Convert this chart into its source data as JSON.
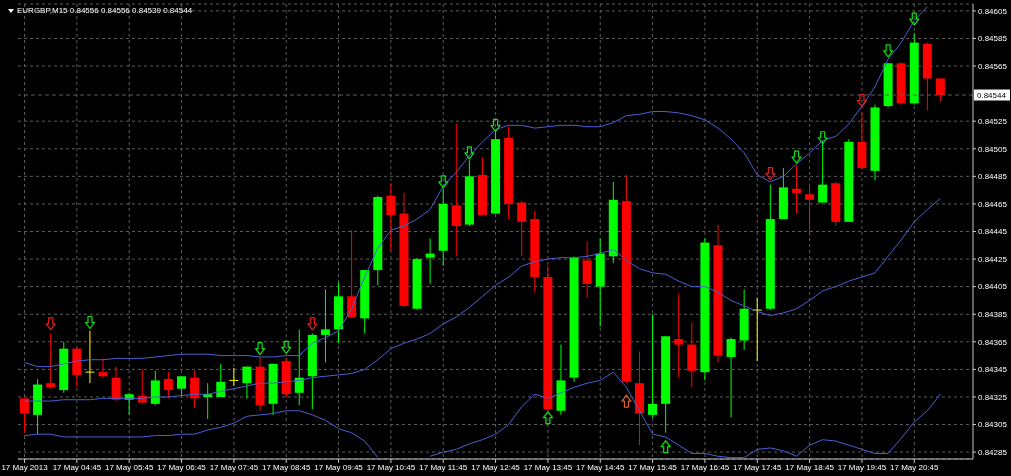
{
  "chart_data": {
    "type": "candlestick",
    "title": "EURGBP,M15 0.84556 0.84556 0.84539 0.84544",
    "categories": [
      "17 May 2013",
      null,
      null,
      null,
      "17 May 04:45",
      null,
      null,
      null,
      "17 May 05:45",
      null,
      null,
      null,
      "17 May 06:45",
      null,
      null,
      null,
      "17 May 07:45",
      null,
      null,
      null,
      "17 May 08:45",
      null,
      null,
      null,
      "17 May 09:45",
      null,
      null,
      null,
      "17 May 10:45",
      null,
      null,
      null,
      "17 May 11:45",
      null,
      null,
      null,
      "17 May 12:45",
      null,
      null,
      null,
      "17 May 13:45",
      null,
      null,
      null,
      "17 May 14:45",
      null,
      null,
      null,
      "17 May 15:45",
      null,
      null,
      null,
      "17 May 16:45",
      null,
      null,
      null,
      "17 May 17:45",
      null,
      null,
      null,
      "17 May 18:45",
      null,
      null,
      null,
      "17 May 19:45",
      null,
      null,
      null,
      "17 May 20:45",
      null,
      null
    ],
    "ohlc": [
      [
        0.84324,
        0.84324,
        0.84299,
        0.84313
      ],
      [
        0.84312,
        0.84338,
        0.84298,
        0.84334
      ],
      [
        0.84335,
        0.84371,
        0.84331,
        0.84332
      ],
      [
        0.8433,
        0.84365,
        0.84328,
        0.8436
      ],
      [
        0.8436,
        0.84361,
        0.84332,
        0.84341
      ],
      [
        0.84343,
        0.84373,
        0.84335,
        0.84343
      ],
      [
        0.84343,
        0.84353,
        0.84339,
        0.8434
      ],
      [
        0.84339,
        0.84347,
        0.84322,
        0.84323
      ],
      [
        0.84323,
        0.84328,
        0.84312,
        0.84327
      ],
      [
        0.84326,
        0.84345,
        0.8432,
        0.84321
      ],
      [
        0.8432,
        0.84344,
        0.84319,
        0.84337
      ],
      [
        0.84338,
        0.84343,
        0.84324,
        0.8433
      ],
      [
        0.84331,
        0.8434,
        0.84326,
        0.8434
      ],
      [
        0.84339,
        0.84344,
        0.84317,
        0.84324
      ],
      [
        0.84325,
        0.84335,
        0.84309,
        0.84327
      ],
      [
        0.84325,
        0.84349,
        0.84325,
        0.84336
      ],
      [
        0.84337,
        0.84346,
        0.84333,
        0.84337
      ],
      [
        0.84335,
        0.84347,
        0.84324,
        0.84347
      ],
      [
        0.84347,
        0.84354,
        0.84315,
        0.84319
      ],
      [
        0.8432,
        0.84349,
        0.84312,
        0.84349
      ],
      [
        0.84351,
        0.84353,
        0.84325,
        0.84327
      ],
      [
        0.84328,
        0.84374,
        0.84319,
        0.84339
      ],
      [
        0.8434,
        0.84371,
        0.84316,
        0.8437
      ],
      [
        0.8437,
        0.84403,
        0.8435,
        0.84374
      ],
      [
        0.84374,
        0.84408,
        0.84364,
        0.84398
      ],
      [
        0.84398,
        0.84446,
        0.84382,
        0.84383
      ],
      [
        0.84382,
        0.84417,
        0.84371,
        0.84417
      ],
      [
        0.84417,
        0.84471,
        0.84406,
        0.8447
      ],
      [
        0.84471,
        0.8448,
        0.84431,
        0.84457
      ],
      [
        0.84458,
        0.84473,
        0.8439,
        0.84391
      ],
      [
        0.84389,
        0.84426,
        0.84388,
        0.84425
      ],
      [
        0.84426,
        0.8444,
        0.84407,
        0.84429
      ],
      [
        0.84431,
        0.84476,
        0.8442,
        0.84465
      ],
      [
        0.84464,
        0.84523,
        0.84427,
        0.84449
      ],
      [
        0.8445,
        0.84497,
        0.84449,
        0.84485
      ],
      [
        0.84486,
        0.84499,
        0.84457,
        0.84457
      ],
      [
        0.84458,
        0.84517,
        0.84458,
        0.84512
      ],
      [
        0.84513,
        0.84521,
        0.84454,
        0.84465
      ],
      [
        0.84466,
        0.84467,
        0.84427,
        0.84452
      ],
      [
        0.84454,
        0.8446,
        0.84401,
        0.84412
      ],
      [
        0.84412,
        0.8442,
        0.84315,
        0.84316
      ],
      [
        0.84315,
        0.84363,
        0.84312,
        0.84337
      ],
      [
        0.84339,
        0.84427,
        0.84336,
        0.84426
      ],
      [
        0.84424,
        0.84438,
        0.84397,
        0.84407
      ],
      [
        0.84405,
        0.8444,
        0.84376,
        0.84429
      ],
      [
        0.84427,
        0.84481,
        0.84422,
        0.84468
      ],
      [
        0.84467,
        0.84486,
        0.84335,
        0.84336
      ],
      [
        0.84335,
        0.84358,
        0.8429,
        0.84313
      ],
      [
        0.84312,
        0.84385,
        0.8431,
        0.8432
      ],
      [
        0.8432,
        0.84369,
        0.84299,
        0.84369
      ],
      [
        0.84367,
        0.844,
        0.84339,
        0.84363
      ],
      [
        0.84363,
        0.84379,
        0.84332,
        0.84344
      ],
      [
        0.84343,
        0.8444,
        0.84337,
        0.84437
      ],
      [
        0.84435,
        0.8445,
        0.8435,
        0.84355
      ],
      [
        0.84354,
        0.84368,
        0.8431,
        0.84367
      ],
      [
        0.84366,
        0.84403,
        0.84359,
        0.84389
      ],
      [
        0.84388,
        0.84397,
        0.84351,
        0.84388
      ],
      [
        0.84389,
        0.84479,
        0.84388,
        0.84454
      ],
      [
        0.84454,
        0.84491,
        0.84454,
        0.84477
      ],
      [
        0.84476,
        0.84493,
        0.84458,
        0.84473
      ],
      [
        0.84472,
        0.8448,
        0.84442,
        0.84468
      ],
      [
        0.84466,
        0.84511,
        0.84466,
        0.84479
      ],
      [
        0.8448,
        0.84481,
        0.84449,
        0.84452
      ],
      [
        0.84452,
        0.84512,
        0.84452,
        0.8451
      ],
      [
        0.8451,
        0.84531,
        0.8449,
        0.84491
      ],
      [
        0.84489,
        0.84537,
        0.84482,
        0.84535
      ],
      [
        0.84536,
        0.84567,
        0.84535,
        0.84567
      ],
      [
        0.84567,
        0.84568,
        0.84537,
        0.84538
      ],
      [
        0.84538,
        0.84589,
        0.84537,
        0.84582
      ],
      [
        0.84581,
        0.84582,
        0.84533,
        0.84556
      ],
      [
        0.84556,
        0.84556,
        0.84539,
        0.84544
      ]
    ],
    "colors": [
      "#ff0000",
      "#00ff00",
      "#ff0000",
      "#00ff00",
      "#ff0000",
      "#ffff00",
      "#ff0000",
      "#ff0000",
      "#00ff00",
      "#ff0000",
      "#00ff00",
      "#ff0000",
      "#00ff00",
      "#ff0000",
      "#00ff00",
      "#00ff00",
      "#ffff00",
      "#00ff00",
      "#ff0000",
      "#00ff00",
      "#ff0000",
      "#00ff00",
      "#00ff00",
      "#00ff00",
      "#00ff00",
      "#ff0000",
      "#00ff00",
      "#00ff00",
      "#ff0000",
      "#ff0000",
      "#00ff00",
      "#00ff00",
      "#00ff00",
      "#ff0000",
      "#00ff00",
      "#ff0000",
      "#00ff00",
      "#ff0000",
      "#ff0000",
      "#ff0000",
      "#ff0000",
      "#00ff00",
      "#00ff00",
      "#ff0000",
      "#00ff00",
      "#00ff00",
      "#ff0000",
      "#ff0000",
      "#00ff00",
      "#00ff00",
      "#ff0000",
      "#ff0000",
      "#00ff00",
      "#ff0000",
      "#00ff00",
      "#00ff00",
      "#ffff00",
      "#00ff00",
      "#00ff00",
      "#ff0000",
      "#ff0000",
      "#00ff00",
      "#ff0000",
      "#00ff00",
      "#ff0000",
      "#00ff00",
      "#00ff00",
      "#ff0000",
      "#00ff00",
      "#ff0000",
      "#ff0000"
    ],
    "series": [
      {
        "type": "line",
        "color": "#4c5fd4",
        "values": [
          0.8435,
          0.84347,
          0.84347,
          0.84349,
          0.84351,
          0.84352,
          0.84352,
          0.84353,
          0.84353,
          0.84353,
          0.84354,
          0.84355,
          0.84356,
          0.84356,
          0.84356,
          0.84355,
          0.84355,
          0.84355,
          0.84354,
          0.84354,
          0.84355,
          0.84355,
          0.84364,
          0.84368,
          0.84373,
          0.84389,
          0.84412,
          0.84433,
          0.84446,
          0.84449,
          0.84454,
          0.84461,
          0.84478,
          0.84488,
          0.845,
          0.8451,
          0.84519,
          0.84522,
          0.84522,
          0.8452,
          0.84521,
          0.84522,
          0.84522,
          0.84521,
          0.84521,
          0.84524,
          0.84529,
          0.8453,
          0.84532,
          0.84532,
          0.84531,
          0.84529,
          0.84526,
          0.8452,
          0.84512,
          0.84502,
          0.84486,
          0.84481,
          0.84485,
          0.84494,
          0.84502,
          0.84511,
          0.84514,
          0.84523,
          0.84536,
          0.8455,
          0.8457,
          0.84582,
          0.84598,
          0.84608,
          null
        ]
      },
      {
        "type": "line",
        "color": "#4c5fd4",
        "values": [
          0.84322,
          0.84322,
          0.84322,
          0.84323,
          0.84323,
          0.84323,
          0.84324,
          0.84324,
          0.84324,
          0.84324,
          0.84325,
          0.84325,
          0.84326,
          0.84327,
          0.84327,
          0.84329,
          0.84331,
          0.84333,
          0.84335,
          0.84335,
          0.84336,
          0.84337,
          0.84339,
          0.8434,
          0.84341,
          0.84342,
          0.84345,
          0.84352,
          0.8436,
          0.84364,
          0.84367,
          0.84371,
          0.84378,
          0.84383,
          0.8439,
          0.84398,
          0.84406,
          0.84412,
          0.8442,
          0.84423,
          0.84425,
          0.84426,
          0.84426,
          0.84427,
          0.84429,
          0.84432,
          0.84424,
          0.84418,
          0.84415,
          0.84414,
          0.84409,
          0.84405,
          0.84405,
          0.84401,
          0.84395,
          0.84391,
          0.84387,
          0.84384,
          0.84386,
          0.84389,
          0.84395,
          0.84402,
          0.84405,
          0.84409,
          0.84412,
          0.84415,
          0.84427,
          0.84439,
          0.84452,
          0.84461,
          0.84469
        ]
      },
      {
        "type": "line",
        "color": "#4c5fd4",
        "values": [
          0.84297,
          0.84298,
          0.84298,
          0.84296,
          0.84296,
          0.84296,
          0.84296,
          0.84296,
          0.84296,
          0.84296,
          0.84297,
          0.84297,
          0.84298,
          0.84298,
          0.84301,
          0.84303,
          0.84306,
          0.84311,
          0.84312,
          0.84313,
          0.84315,
          0.84315,
          0.84312,
          0.84308,
          0.84302,
          0.84299,
          0.84293,
          0.84281,
          null,
          null,
          null,
          0.84282,
          0.84285,
          0.84287,
          0.84291,
          0.84294,
          0.84298,
          0.84305,
          0.84318,
          0.84327,
          0.84324,
          0.84328,
          0.84332,
          0.84335,
          0.84337,
          0.84343,
          0.84332,
          0.84315,
          0.84298,
          0.84296,
          0.8429,
          0.84284,
          0.84284,
          0.84282,
          0.84281,
          0.84281,
          0.84287,
          0.84288,
          0.84286,
          0.84282,
          0.8429,
          0.84294,
          0.84293,
          0.8429,
          0.84287,
          0.84284,
          0.84284,
          0.84295,
          0.84307,
          0.84315,
          0.84327
        ]
      },
      {
        "type": "scatter",
        "color": "#10e010",
        "marker": "triangle",
        "values": [
          null,
          null,
          null,
          null,
          null,
          0.84379,
          null,
          null,
          null,
          null,
          null,
          null,
          null,
          null,
          null,
          null,
          null,
          null,
          0.8436,
          null,
          0.84361,
          null,
          null,
          null,
          null,
          null,
          null,
          null,
          null,
          null,
          null,
          null,
          0.84481,
          null,
          0.84502,
          null,
          0.84522,
          null,
          null,
          null,
          null,
          null,
          null,
          null,
          null,
          null,
          null,
          null,
          null,
          null,
          null,
          null,
          null,
          null,
          null,
          null,
          null,
          null,
          null,
          0.84499,
          null,
          0.84513,
          null,
          null,
          null,
          null,
          0.84576,
          null,
          0.84599,
          null,
          null
        ]
      },
      {
        "type": "scatter",
        "color": "#e02020",
        "marker": "triangle",
        "values": [
          null,
          null,
          0.84378,
          null,
          null,
          null,
          null,
          null,
          null,
          null,
          null,
          null,
          null,
          null,
          null,
          null,
          null,
          null,
          null,
          null,
          null,
          null,
          0.84378,
          null,
          null,
          null,
          null,
          null,
          null,
          null,
          null,
          null,
          null,
          null,
          null,
          null,
          null,
          null,
          null,
          null,
          null,
          null,
          null,
          null,
          null,
          null,
          null,
          null,
          null,
          null,
          null,
          null,
          null,
          null,
          null,
          null,
          null,
          0.84487,
          null,
          null,
          null,
          null,
          null,
          null,
          0.8454,
          null,
          null,
          null,
          null,
          null,
          null
        ]
      },
      {
        "type": "scatter",
        "color": "#10e010",
        "marker": "triangle",
        "values": [
          null,
          null,
          null,
          null,
          null,
          null,
          null,
          null,
          null,
          null,
          null,
          null,
          null,
          null,
          null,
          null,
          null,
          null,
          null,
          null,
          null,
          null,
          null,
          null,
          null,
          null,
          null,
          null,
          null,
          null,
          null,
          null,
          null,
          null,
          null,
          null,
          null,
          null,
          null,
          null,
          0.8431,
          null,
          null,
          null,
          null,
          null,
          null,
          null,
          null,
          0.84289,
          null,
          null,
          null,
          null,
          null,
          null,
          null,
          null,
          null,
          null,
          null,
          null,
          null,
          null,
          null,
          null,
          null,
          null,
          null,
          null,
          null
        ]
      },
      {
        "type": "scatter",
        "color": "#e0602c",
        "marker": "triangle",
        "values": [
          null,
          null,
          null,
          null,
          null,
          null,
          null,
          null,
          null,
          null,
          null,
          null,
          null,
          null,
          null,
          null,
          null,
          null,
          null,
          null,
          null,
          null,
          null,
          null,
          null,
          null,
          null,
          null,
          null,
          null,
          null,
          null,
          null,
          null,
          null,
          null,
          null,
          null,
          null,
          null,
          null,
          null,
          null,
          null,
          null,
          null,
          0.84322,
          null,
          null,
          null,
          null,
          null,
          null,
          null,
          null,
          null,
          null,
          null,
          null,
          null,
          null,
          null,
          null,
          null,
          null,
          null,
          null,
          null,
          null,
          null,
          null
        ]
      }
    ],
    "ylim": [
      0.8428,
      0.8461
    ],
    "yticks": [
      0.84285,
      0.84305,
      0.84325,
      0.84345,
      0.84365,
      0.84385,
      0.84405,
      0.84425,
      0.84445,
      0.84465,
      0.84485,
      0.84505,
      0.84525,
      0.84565,
      0.84585,
      0.84605
    ],
    "ref_lines": [
      {
        "axis": "y",
        "value": 0.84544,
        "label": "0.84544",
        "color": "#5c5c5c",
        "line_style": "dashed"
      }
    ],
    "grid": true
  }
}
